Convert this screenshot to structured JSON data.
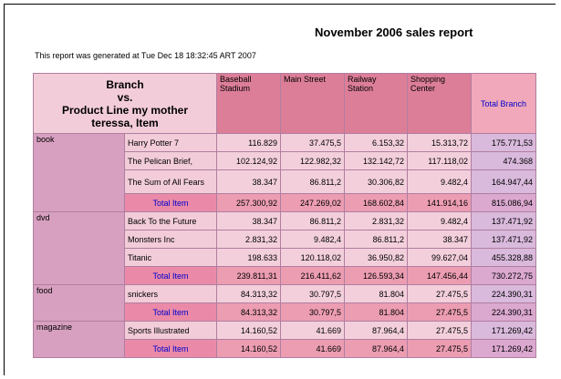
{
  "title": "November 2006 sales report",
  "subtitle": "This report was generated at Tue Dec 18 18:32:45 ART 2007",
  "corner": {
    "line1": "Branch",
    "line2": "vs.",
    "line3": "Product Line my mother",
    "line4": "teressa, Item"
  },
  "columns": [
    "Baseball Stadium",
    "Main Street",
    "Railway Station",
    "Shopping Center",
    "Total Branch"
  ],
  "groups": [
    {
      "name": "book",
      "rows": [
        {
          "item": "Harry Potter 7",
          "values": [
            "116.829",
            "37.475,5",
            "6.153,32",
            "15.313,72",
            "175.771,53"
          ]
        },
        {
          "item": "The Pelican Brief,",
          "values": [
            "102.124,92",
            "122.982,32",
            "132.142,72",
            "117.118,02",
            "474.368"
          ]
        },
        {
          "item": "The Sum of All Fears",
          "values": [
            "38.347",
            "86.811,2",
            "30.306,82",
            "9.482,4",
            "164.947,44"
          ]
        }
      ],
      "total": {
        "label": "Total Item",
        "values": [
          "257.300,92",
          "247.269,02",
          "168.602,84",
          "141.914,16",
          "815.086,94"
        ]
      }
    },
    {
      "name": "dvd",
      "rows": [
        {
          "item": "Back To the Future",
          "values": [
            "38.347",
            "86.811,2",
            "2.831,32",
            "9.482,4",
            "137.471,92"
          ]
        },
        {
          "item": "Monsters Inc",
          "values": [
            "2.831,32",
            "9.482,4",
            "86.811,2",
            "38.347",
            "137.471,92"
          ]
        },
        {
          "item": "Titanic",
          "values": [
            "198.633",
            "120.118,02",
            "36.950,82",
            "99.627,04",
            "455.328,88"
          ]
        }
      ],
      "total": {
        "label": "Total Item",
        "values": [
          "239.811,31",
          "216.411,62",
          "126.593,34",
          "147.456,44",
          "730.272,75"
        ]
      }
    },
    {
      "name": "food",
      "rows": [
        {
          "item": "snickers",
          "values": [
            "84.313,32",
            "30.797,5",
            "81.804",
            "27.475,5",
            "224.390,31"
          ]
        }
      ],
      "total": {
        "label": "Total Item",
        "values": [
          "84.313,32",
          "30.797,5",
          "81.804",
          "27.475,5",
          "224.390,31"
        ]
      }
    },
    {
      "name": "magazine",
      "rows": [
        {
          "item": "Sports Illustrated",
          "values": [
            "14.160,52",
            "41.669",
            "87.964,4",
            "27.475,5",
            "171.269,42"
          ]
        }
      ],
      "total": {
        "label": "Total Item",
        "values": [
          "14.160,52",
          "41.669",
          "87.964,4",
          "27.475,5",
          "171.269,42"
        ]
      }
    }
  ]
}
